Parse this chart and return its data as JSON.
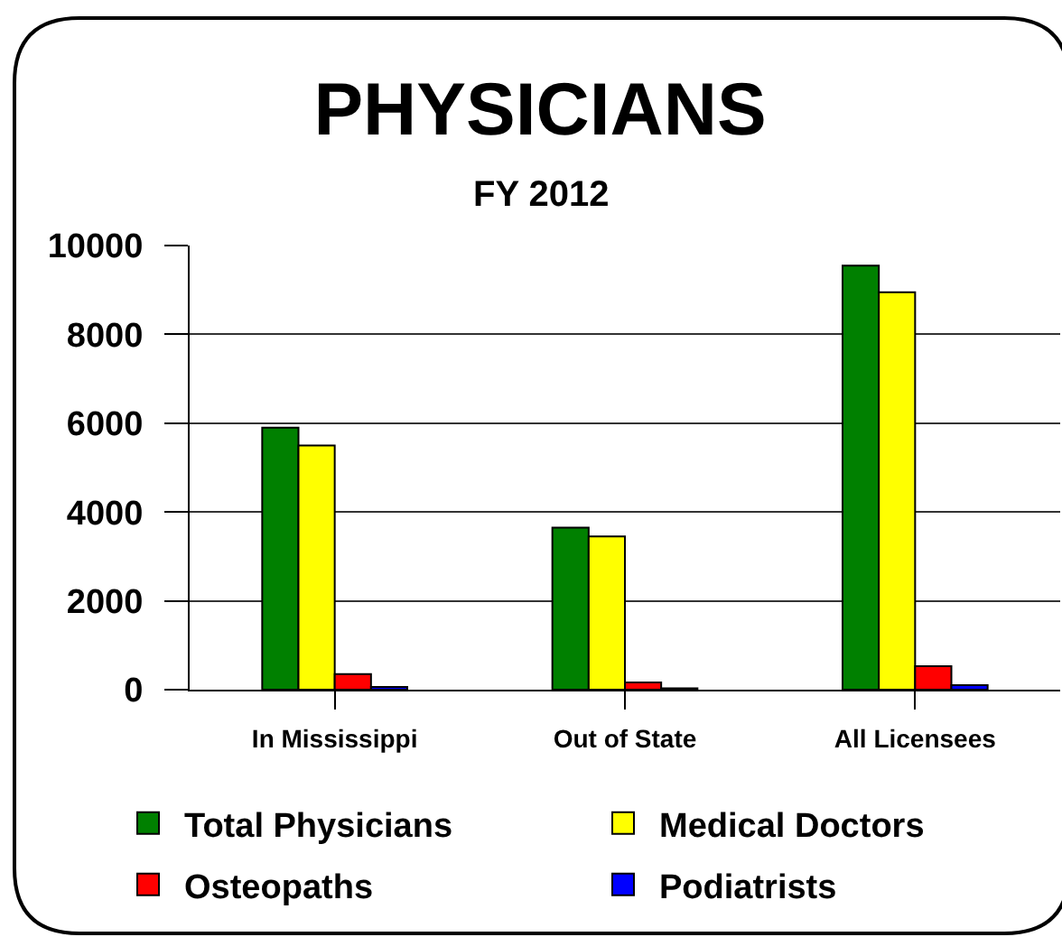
{
  "chart_data": {
    "type": "bar",
    "title": "PHYSICIANS",
    "subtitle": "FY 2012",
    "categories": [
      "In Mississippi",
      "Out of State",
      "All Licensees"
    ],
    "series": [
      {
        "name": "Total Physicians",
        "color": "#008000",
        "values": [
          5900,
          3650,
          9550
        ]
      },
      {
        "name": "Medical Doctors",
        "color": "#ffff00",
        "values": [
          5500,
          3450,
          8950
        ]
      },
      {
        "name": "Osteopaths",
        "color": "#ff0000",
        "values": [
          350,
          160,
          530
        ]
      },
      {
        "name": "Podiatrists",
        "color": "#0000ff",
        "values": [
          60,
          30,
          100
        ]
      }
    ],
    "ylim": [
      0,
      10000
    ],
    "yticks": [
      0,
      2000,
      4000,
      6000,
      8000,
      10000
    ],
    "grid": "y",
    "legend": "bottom"
  }
}
